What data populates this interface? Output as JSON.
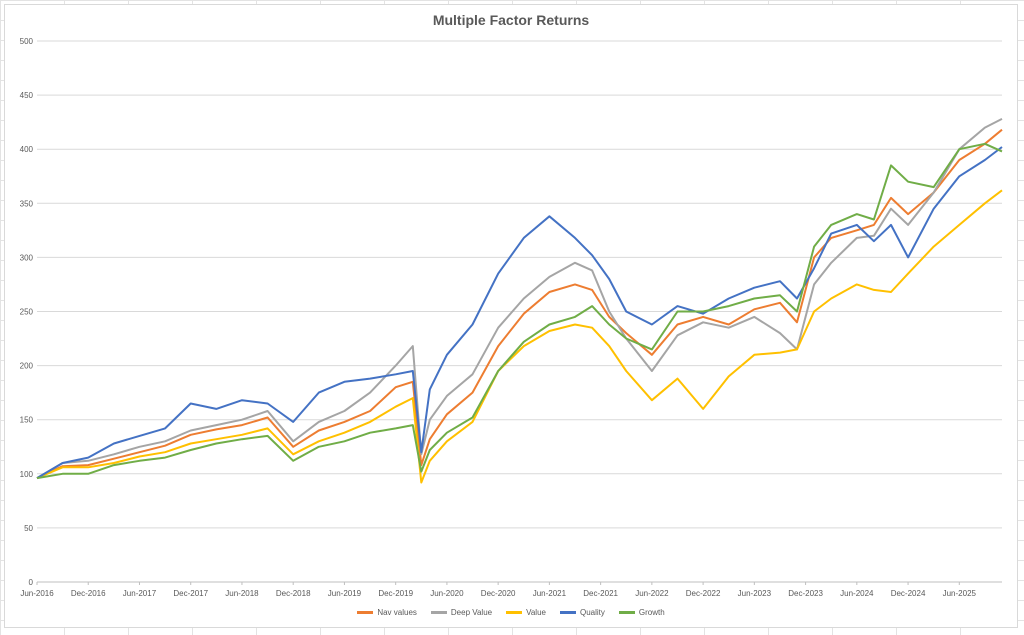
{
  "chart_data": {
    "type": "line",
    "title": "Multiple Factor Returns",
    "xlabel": "",
    "ylabel": "",
    "ylim": [
      0,
      500
    ],
    "yticks": [
      0,
      50,
      100,
      150,
      200,
      250,
      300,
      350,
      400,
      450,
      500
    ],
    "xlim": [
      "2016-06",
      "2025-11"
    ],
    "xtick_labels": [
      "Jun-2016",
      "Dec-2016",
      "Jun-2017",
      "Dec-2017",
      "Jun-2018",
      "Dec-2018",
      "Jun-2019",
      "Dec-2019",
      "Jun-2020",
      "Dec-2020",
      "Jun-2021",
      "Dec-2021",
      "Jun-2022",
      "Dec-2022",
      "Jun-2023",
      "Dec-2023",
      "Jun-2024",
      "Dec-2024",
      "Jun-2025"
    ],
    "grid": "horizontal",
    "legend_position": "bottom",
    "series": [
      {
        "name": "Nav values",
        "color": "#ED7D31",
        "points": [
          [
            "2016-06",
            96
          ],
          [
            "2016-09",
            107
          ],
          [
            "2016-12",
            108
          ],
          [
            "2017-03",
            114
          ],
          [
            "2017-06",
            120
          ],
          [
            "2017-09",
            126
          ],
          [
            "2017-12",
            136
          ],
          [
            "2018-03",
            141
          ],
          [
            "2018-06",
            145
          ],
          [
            "2018-09",
            152
          ],
          [
            "2018-12",
            125
          ],
          [
            "2019-03",
            140
          ],
          [
            "2019-06",
            148
          ],
          [
            "2019-09",
            158
          ],
          [
            "2019-12",
            180
          ],
          [
            "2020-02",
            185
          ],
          [
            "2020-03",
            108
          ],
          [
            "2020-04",
            132
          ],
          [
            "2020-06",
            155
          ],
          [
            "2020-09",
            175
          ],
          [
            "2020-12",
            218
          ],
          [
            "2021-03",
            248
          ],
          [
            "2021-06",
            268
          ],
          [
            "2021-09",
            275
          ],
          [
            "2021-11",
            270
          ],
          [
            "2022-01",
            245
          ],
          [
            "2022-03",
            230
          ],
          [
            "2022-06",
            210
          ],
          [
            "2022-09",
            238
          ],
          [
            "2022-12",
            245
          ],
          [
            "2023-03",
            238
          ],
          [
            "2023-06",
            252
          ],
          [
            "2023-09",
            258
          ],
          [
            "2023-11",
            240
          ],
          [
            "2024-01",
            300
          ],
          [
            "2024-03",
            318
          ],
          [
            "2024-06",
            325
          ],
          [
            "2024-08",
            330
          ],
          [
            "2024-10",
            355
          ],
          [
            "2024-12",
            340
          ],
          [
            "2025-03",
            360
          ],
          [
            "2025-06",
            390
          ],
          [
            "2025-09",
            405
          ],
          [
            "2025-11",
            418
          ]
        ]
      },
      {
        "name": "Deep Value",
        "color": "#A5A5A5",
        "points": [
          [
            "2016-06",
            96
          ],
          [
            "2016-09",
            110
          ],
          [
            "2016-12",
            112
          ],
          [
            "2017-03",
            118
          ],
          [
            "2017-06",
            125
          ],
          [
            "2017-09",
            130
          ],
          [
            "2017-12",
            140
          ],
          [
            "2018-03",
            145
          ],
          [
            "2018-06",
            150
          ],
          [
            "2018-09",
            158
          ],
          [
            "2018-12",
            130
          ],
          [
            "2019-03",
            148
          ],
          [
            "2019-06",
            158
          ],
          [
            "2019-09",
            175
          ],
          [
            "2019-12",
            200
          ],
          [
            "2020-02",
            218
          ],
          [
            "2020-03",
            118
          ],
          [
            "2020-04",
            150
          ],
          [
            "2020-06",
            172
          ],
          [
            "2020-09",
            192
          ],
          [
            "2020-12",
            235
          ],
          [
            "2021-03",
            262
          ],
          [
            "2021-06",
            282
          ],
          [
            "2021-09",
            295
          ],
          [
            "2021-11",
            288
          ],
          [
            "2022-01",
            250
          ],
          [
            "2022-03",
            225
          ],
          [
            "2022-06",
            195
          ],
          [
            "2022-09",
            228
          ],
          [
            "2022-12",
            240
          ],
          [
            "2023-03",
            235
          ],
          [
            "2023-06",
            245
          ],
          [
            "2023-09",
            230
          ],
          [
            "2023-11",
            215
          ],
          [
            "2024-01",
            275
          ],
          [
            "2024-03",
            295
          ],
          [
            "2024-06",
            318
          ],
          [
            "2024-08",
            320
          ],
          [
            "2024-10",
            345
          ],
          [
            "2024-12",
            330
          ],
          [
            "2025-03",
            360
          ],
          [
            "2025-06",
            400
          ],
          [
            "2025-09",
            420
          ],
          [
            "2025-11",
            428
          ]
        ]
      },
      {
        "name": "Value",
        "color": "#FFC000",
        "points": [
          [
            "2016-06",
            96
          ],
          [
            "2016-09",
            106
          ],
          [
            "2016-12",
            106
          ],
          [
            "2017-03",
            110
          ],
          [
            "2017-06",
            116
          ],
          [
            "2017-09",
            120
          ],
          [
            "2017-12",
            128
          ],
          [
            "2018-03",
            132
          ],
          [
            "2018-06",
            136
          ],
          [
            "2018-09",
            142
          ],
          [
            "2018-12",
            118
          ],
          [
            "2019-03",
            130
          ],
          [
            "2019-06",
            138
          ],
          [
            "2019-09",
            148
          ],
          [
            "2019-12",
            162
          ],
          [
            "2020-02",
            170
          ],
          [
            "2020-03",
            92
          ],
          [
            "2020-04",
            112
          ],
          [
            "2020-06",
            130
          ],
          [
            "2020-09",
            148
          ],
          [
            "2020-12",
            195
          ],
          [
            "2021-03",
            218
          ],
          [
            "2021-06",
            232
          ],
          [
            "2021-09",
            238
          ],
          [
            "2021-11",
            235
          ],
          [
            "2022-01",
            218
          ],
          [
            "2022-03",
            195
          ],
          [
            "2022-06",
            168
          ],
          [
            "2022-09",
            188
          ],
          [
            "2022-12",
            160
          ],
          [
            "2023-03",
            190
          ],
          [
            "2023-06",
            210
          ],
          [
            "2023-09",
            212
          ],
          [
            "2023-11",
            215
          ],
          [
            "2024-01",
            250
          ],
          [
            "2024-03",
            262
          ],
          [
            "2024-06",
            275
          ],
          [
            "2024-08",
            270
          ],
          [
            "2024-10",
            268
          ],
          [
            "2024-12",
            285
          ],
          [
            "2025-03",
            310
          ],
          [
            "2025-06",
            330
          ],
          [
            "2025-09",
            350
          ],
          [
            "2025-11",
            362
          ]
        ]
      },
      {
        "name": "Quality",
        "color": "#4472C4",
        "points": [
          [
            "2016-06",
            96
          ],
          [
            "2016-09",
            110
          ],
          [
            "2016-12",
            115
          ],
          [
            "2017-03",
            128
          ],
          [
            "2017-06",
            135
          ],
          [
            "2017-09",
            142
          ],
          [
            "2017-12",
            165
          ],
          [
            "2018-03",
            160
          ],
          [
            "2018-06",
            168
          ],
          [
            "2018-09",
            165
          ],
          [
            "2018-12",
            148
          ],
          [
            "2019-03",
            175
          ],
          [
            "2019-06",
            185
          ],
          [
            "2019-09",
            188
          ],
          [
            "2019-12",
            192
          ],
          [
            "2020-02",
            195
          ],
          [
            "2020-03",
            120
          ],
          [
            "2020-04",
            178
          ],
          [
            "2020-06",
            210
          ],
          [
            "2020-09",
            238
          ],
          [
            "2020-12",
            285
          ],
          [
            "2021-03",
            318
          ],
          [
            "2021-06",
            338
          ],
          [
            "2021-09",
            318
          ],
          [
            "2021-11",
            302
          ],
          [
            "2022-01",
            280
          ],
          [
            "2022-03",
            250
          ],
          [
            "2022-06",
            238
          ],
          [
            "2022-09",
            255
          ],
          [
            "2022-12",
            248
          ],
          [
            "2023-03",
            262
          ],
          [
            "2023-06",
            272
          ],
          [
            "2023-09",
            278
          ],
          [
            "2023-11",
            262
          ],
          [
            "2024-01",
            290
          ],
          [
            "2024-03",
            322
          ],
          [
            "2024-06",
            330
          ],
          [
            "2024-08",
            315
          ],
          [
            "2024-10",
            330
          ],
          [
            "2024-12",
            300
          ],
          [
            "2025-03",
            345
          ],
          [
            "2025-06",
            375
          ],
          [
            "2025-09",
            390
          ],
          [
            "2025-11",
            402
          ]
        ]
      },
      {
        "name": "Growth",
        "color": "#70AD47",
        "points": [
          [
            "2016-06",
            96
          ],
          [
            "2016-09",
            100
          ],
          [
            "2016-12",
            100
          ],
          [
            "2017-03",
            108
          ],
          [
            "2017-06",
            112
          ],
          [
            "2017-09",
            115
          ],
          [
            "2017-12",
            122
          ],
          [
            "2018-03",
            128
          ],
          [
            "2018-06",
            132
          ],
          [
            "2018-09",
            135
          ],
          [
            "2018-12",
            112
          ],
          [
            "2019-03",
            125
          ],
          [
            "2019-06",
            130
          ],
          [
            "2019-09",
            138
          ],
          [
            "2019-12",
            142
          ],
          [
            "2020-02",
            145
          ],
          [
            "2020-03",
            102
          ],
          [
            "2020-04",
            122
          ],
          [
            "2020-06",
            138
          ],
          [
            "2020-09",
            152
          ],
          [
            "2020-12",
            195
          ],
          [
            "2021-03",
            222
          ],
          [
            "2021-06",
            238
          ],
          [
            "2021-09",
            245
          ],
          [
            "2021-11",
            255
          ],
          [
            "2022-01",
            238
          ],
          [
            "2022-03",
            225
          ],
          [
            "2022-06",
            215
          ],
          [
            "2022-09",
            250
          ],
          [
            "2022-12",
            250
          ],
          [
            "2023-03",
            255
          ],
          [
            "2023-06",
            262
          ],
          [
            "2023-09",
            265
          ],
          [
            "2023-11",
            250
          ],
          [
            "2024-01",
            310
          ],
          [
            "2024-03",
            330
          ],
          [
            "2024-06",
            340
          ],
          [
            "2024-08",
            335
          ],
          [
            "2024-10",
            385
          ],
          [
            "2024-12",
            370
          ],
          [
            "2025-03",
            365
          ],
          [
            "2025-06",
            400
          ],
          [
            "2025-09",
            405
          ],
          [
            "2025-11",
            398
          ]
        ]
      }
    ]
  }
}
